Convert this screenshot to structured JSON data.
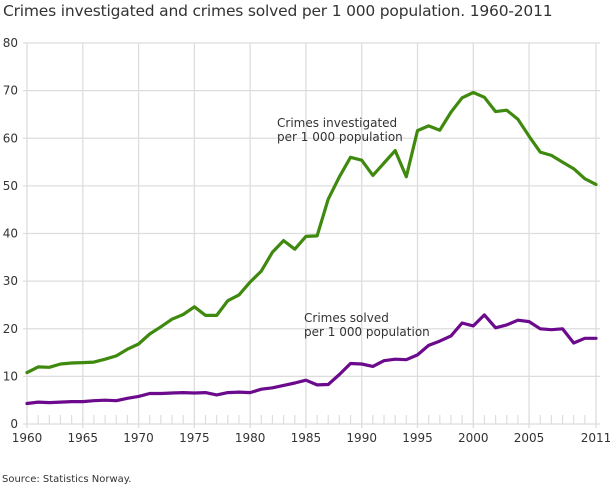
{
  "title": "Crimes investigated and crimes solved per 1 000 population. 1960-2011",
  "source": "Source: Statistics Norway.",
  "colors": {
    "investigated": "#3f8a0e",
    "solved": "#6b0a8c",
    "grid": "#dddddd",
    "text": "#333333"
  },
  "chart_data": {
    "type": "line",
    "title": "Crimes investigated and crimes solved per 1 000 population. 1960-2011",
    "xlabel": "",
    "ylabel": "",
    "ylim": [
      0,
      80
    ],
    "xlim": [
      1960,
      2011
    ],
    "grid": true,
    "legend_position": "inline annotations",
    "y_ticks": [
      0,
      10,
      20,
      30,
      40,
      50,
      60,
      70,
      80
    ],
    "x_tick_labels": [
      "1960",
      "1965",
      "1970",
      "1975",
      "1980",
      "1985",
      "1990",
      "1995",
      "2000",
      "2005",
      "2011"
    ],
    "x": [
      1960,
      1961,
      1962,
      1963,
      1964,
      1965,
      1966,
      1967,
      1968,
      1969,
      1970,
      1971,
      1972,
      1973,
      1974,
      1975,
      1976,
      1977,
      1978,
      1979,
      1980,
      1981,
      1982,
      1983,
      1984,
      1985,
      1986,
      1987,
      1988,
      1989,
      1990,
      1991,
      1992,
      1993,
      1994,
      1995,
      1996,
      1997,
      1998,
      1999,
      2000,
      2001,
      2002,
      2003,
      2004,
      2005,
      2006,
      2007,
      2008,
      2009,
      2010,
      2011
    ],
    "series": [
      {
        "name": "Crimes investigated per 1 000 population",
        "label_lines": [
          "Crimes investigated",
          "per 1 000 population"
        ],
        "values": [
          10.8,
          12.0,
          11.9,
          12.6,
          12.8,
          12.9,
          13.0,
          13.6,
          14.3,
          15.7,
          16.8,
          18.9,
          20.4,
          22.0,
          23.0,
          24.6,
          22.8,
          22.8,
          25.9,
          27.1,
          29.8,
          32.1,
          36.1,
          38.5,
          36.7,
          39.4,
          39.5,
          47.2,
          51.9,
          56.0,
          55.4,
          52.2,
          54.8,
          57.4,
          51.9,
          61.6,
          62.6,
          61.7,
          65.5,
          68.5,
          69.6,
          68.6,
          65.6,
          65.9,
          64.0,
          60.4,
          57.1,
          56.4,
          55.0,
          53.6,
          51.5,
          50.3
        ]
      },
      {
        "name": "Crimes solved per 1 000 population",
        "label_lines": [
          "Crimes solved",
          "per 1 000 population"
        ],
        "values": [
          4.3,
          4.6,
          4.5,
          4.6,
          4.7,
          4.7,
          4.9,
          5.0,
          4.9,
          5.4,
          5.8,
          6.4,
          6.4,
          6.5,
          6.6,
          6.5,
          6.6,
          6.1,
          6.6,
          6.7,
          6.6,
          7.3,
          7.6,
          8.1,
          8.6,
          9.2,
          8.2,
          8.3,
          10.4,
          12.7,
          12.6,
          12.1,
          13.3,
          13.6,
          13.5,
          14.5,
          16.5,
          17.4,
          18.5,
          21.2,
          20.6,
          22.9,
          20.2,
          20.8,
          21.8,
          21.5,
          20.0,
          19.8,
          20.0,
          17.0,
          18.0,
          18.0
        ]
      }
    ]
  }
}
